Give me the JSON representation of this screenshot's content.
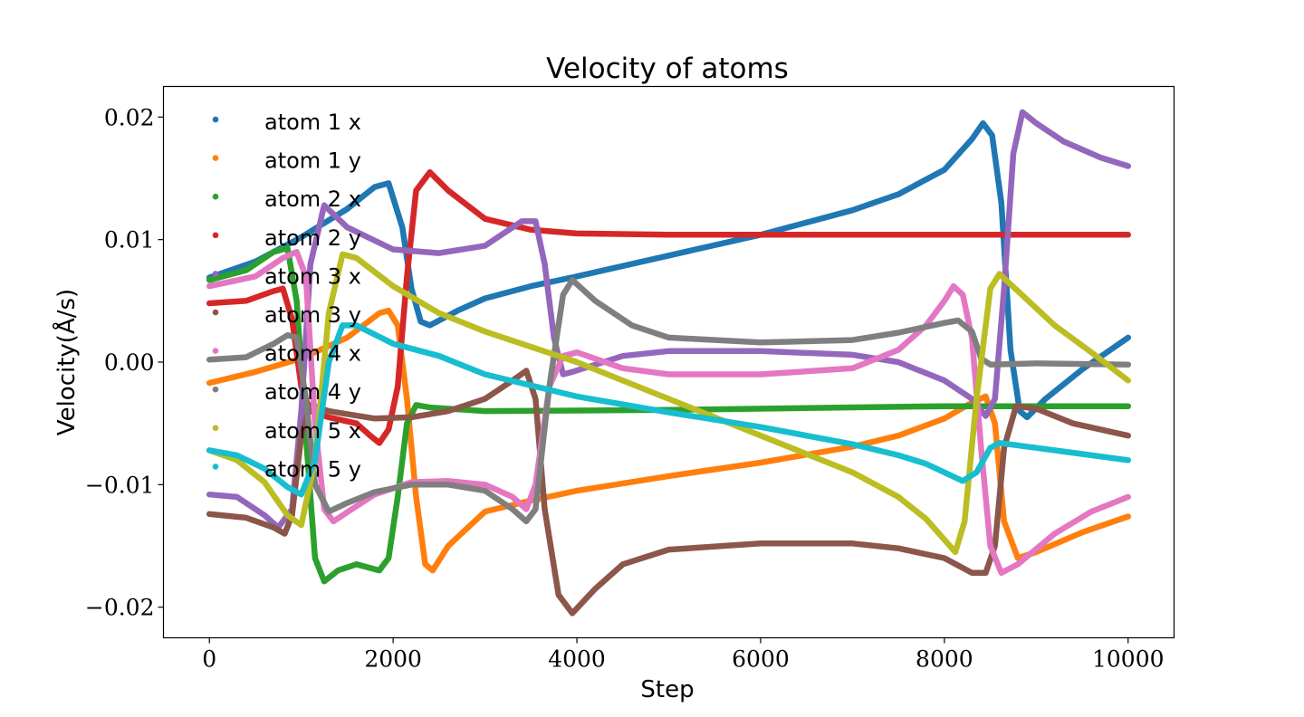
{
  "chart_data": {
    "type": "scatter",
    "title": "Velocity of atoms",
    "xlabel": "Step",
    "ylabel": "Velocity(Å/s)",
    "xlim": [
      -500,
      10500
    ],
    "ylim": [
      -0.0225,
      0.0225
    ],
    "xticks": [
      0,
      2000,
      4000,
      6000,
      8000,
      10000
    ],
    "xtick_labels": [
      "0",
      "2000",
      "4000",
      "6000",
      "8000",
      "10000"
    ],
    "yticks": [
      0.02,
      0.01,
      0.0,
      -0.01,
      -0.02
    ],
    "ytick_labels": [
      "0.02",
      "0.01",
      "0.00",
      "−0.01",
      "−0.02"
    ],
    "legend_position": "upper-left",
    "grid": false,
    "series": [
      {
        "name": "atom 1 x",
        "color": "#1f77b4",
        "points": [
          [
            0,
            0.0069
          ],
          [
            500,
            0.0082
          ],
          [
            1000,
            0.0102
          ],
          [
            1500,
            0.0125
          ],
          [
            1800,
            0.0143
          ],
          [
            1950,
            0.0146
          ],
          [
            2100,
            0.011
          ],
          [
            2200,
            0.006
          ],
          [
            2300,
            0.0033
          ],
          [
            2400,
            0.003
          ],
          [
            2700,
            0.0042
          ],
          [
            3000,
            0.0052
          ],
          [
            3500,
            0.0062
          ],
          [
            4000,
            0.007
          ],
          [
            5000,
            0.0087
          ],
          [
            6000,
            0.0104
          ],
          [
            7000,
            0.0124
          ],
          [
            7500,
            0.0137
          ],
          [
            8000,
            0.0157
          ],
          [
            8300,
            0.0182
          ],
          [
            8420,
            0.0195
          ],
          [
            8520,
            0.0185
          ],
          [
            8620,
            0.013
          ],
          [
            8720,
            0.001
          ],
          [
            8820,
            -0.004
          ],
          [
            8900,
            -0.0045
          ],
          [
            9100,
            -0.003
          ],
          [
            9500,
            -0.0006
          ],
          [
            10000,
            0.002
          ]
        ]
      },
      {
        "name": "atom 1 y",
        "color": "#ff7f0e",
        "points": [
          [
            0,
            -0.0017
          ],
          [
            500,
            -0.0008
          ],
          [
            1000,
            0.0003
          ],
          [
            1500,
            0.002
          ],
          [
            1850,
            0.004
          ],
          [
            1950,
            0.0042
          ],
          [
            2050,
            0.003
          ],
          [
            2150,
            -0.003
          ],
          [
            2250,
            -0.011
          ],
          [
            2350,
            -0.0165
          ],
          [
            2430,
            -0.017
          ],
          [
            2600,
            -0.015
          ],
          [
            3000,
            -0.0122
          ],
          [
            3500,
            -0.0113
          ],
          [
            4000,
            -0.0105
          ],
          [
            5000,
            -0.0093
          ],
          [
            6000,
            -0.0082
          ],
          [
            7000,
            -0.0069
          ],
          [
            7500,
            -0.006
          ],
          [
            8000,
            -0.0046
          ],
          [
            8300,
            -0.0033
          ],
          [
            8450,
            -0.0028
          ],
          [
            8550,
            -0.005
          ],
          [
            8650,
            -0.013
          ],
          [
            8800,
            -0.016
          ],
          [
            9000,
            -0.0155
          ],
          [
            9500,
            -0.0139
          ],
          [
            10000,
            -0.0126
          ]
        ]
      },
      {
        "name": "atom 2 x",
        "color": "#2ca02c",
        "points": [
          [
            0,
            0.0067
          ],
          [
            400,
            0.0075
          ],
          [
            700,
            0.009
          ],
          [
            850,
            0.0093
          ],
          [
            950,
            0.005
          ],
          [
            1050,
            -0.006
          ],
          [
            1150,
            -0.016
          ],
          [
            1250,
            -0.0179
          ],
          [
            1400,
            -0.017
          ],
          [
            1600,
            -0.0165
          ],
          [
            1850,
            -0.017
          ],
          [
            1950,
            -0.016
          ],
          [
            2050,
            -0.011
          ],
          [
            2150,
            -0.005
          ],
          [
            2250,
            -0.0035
          ],
          [
            2400,
            -0.0037
          ],
          [
            3000,
            -0.004
          ],
          [
            5000,
            -0.0039
          ],
          [
            8000,
            -0.0036
          ],
          [
            10000,
            -0.0036
          ]
        ]
      },
      {
        "name": "atom 2 y",
        "color": "#d62728",
        "points": [
          [
            0,
            0.0048
          ],
          [
            400,
            0.005
          ],
          [
            700,
            0.0058
          ],
          [
            800,
            0.006
          ],
          [
            900,
            0.0035
          ],
          [
            1000,
            -0.002
          ],
          [
            1100,
            -0.004
          ],
          [
            1300,
            -0.0045
          ],
          [
            1600,
            -0.005
          ],
          [
            1750,
            -0.006
          ],
          [
            1850,
            -0.0066
          ],
          [
            1950,
            -0.0055
          ],
          [
            2050,
            -0.002
          ],
          [
            2150,
            0.007
          ],
          [
            2250,
            0.014
          ],
          [
            2400,
            0.0155
          ],
          [
            2600,
            0.014
          ],
          [
            3000,
            0.0117
          ],
          [
            3500,
            0.0108
          ],
          [
            4000,
            0.0105
          ],
          [
            5000,
            0.0104
          ],
          [
            6000,
            0.0104
          ],
          [
            8000,
            0.0104
          ],
          [
            10000,
            0.0104
          ]
        ]
      },
      {
        "name": "atom 3 x",
        "color": "#9467bd",
        "points": [
          [
            0,
            -0.0108
          ],
          [
            300,
            -0.011
          ],
          [
            600,
            -0.0125
          ],
          [
            750,
            -0.0135
          ],
          [
            900,
            -0.012
          ],
          [
            1000,
            -0.004
          ],
          [
            1100,
            0.008
          ],
          [
            1250,
            0.0128
          ],
          [
            1500,
            0.011
          ],
          [
            2000,
            0.0092
          ],
          [
            2500,
            0.0089
          ],
          [
            3000,
            0.0095
          ],
          [
            3400,
            0.0115
          ],
          [
            3550,
            0.0115
          ],
          [
            3650,
            0.008
          ],
          [
            3750,
            0.002
          ],
          [
            3850,
            -0.001
          ],
          [
            3950,
            -0.0008
          ],
          [
            4500,
            0.0005
          ],
          [
            5000,
            0.0009
          ],
          [
            6000,
            0.0009
          ],
          [
            7000,
            0.0006
          ],
          [
            7500,
            0.0
          ],
          [
            8000,
            -0.0015
          ],
          [
            8300,
            -0.003
          ],
          [
            8450,
            -0.0044
          ],
          [
            8550,
            -0.003
          ],
          [
            8650,
            0.006
          ],
          [
            8750,
            0.017
          ],
          [
            8850,
            0.0204
          ],
          [
            9000,
            0.0195
          ],
          [
            9300,
            0.018
          ],
          [
            9700,
            0.0167
          ],
          [
            10000,
            0.016
          ]
        ]
      },
      {
        "name": "atom 3 y",
        "color": "#8c564b",
        "points": [
          [
            0,
            -0.0124
          ],
          [
            400,
            -0.0127
          ],
          [
            700,
            -0.0135
          ],
          [
            820,
            -0.014
          ],
          [
            900,
            -0.0125
          ],
          [
            1000,
            -0.006
          ],
          [
            1100,
            -0.0035
          ],
          [
            1300,
            -0.004
          ],
          [
            1800,
            -0.0046
          ],
          [
            2200,
            -0.0045
          ],
          [
            2600,
            -0.004
          ],
          [
            3000,
            -0.003
          ],
          [
            3300,
            -0.0015
          ],
          [
            3450,
            -0.0007
          ],
          [
            3550,
            -0.003
          ],
          [
            3650,
            -0.012
          ],
          [
            3800,
            -0.019
          ],
          [
            3950,
            -0.0205
          ],
          [
            4200,
            -0.0185
          ],
          [
            4500,
            -0.0165
          ],
          [
            5000,
            -0.0153
          ],
          [
            6000,
            -0.0148
          ],
          [
            7000,
            -0.0148
          ],
          [
            7500,
            -0.0152
          ],
          [
            8000,
            -0.016
          ],
          [
            8300,
            -0.0172
          ],
          [
            8450,
            -0.0172
          ],
          [
            8550,
            -0.015
          ],
          [
            8650,
            -0.007
          ],
          [
            8780,
            -0.0036
          ],
          [
            9000,
            -0.0038
          ],
          [
            9400,
            -0.005
          ],
          [
            10000,
            -0.006
          ]
        ]
      },
      {
        "name": "atom 4 x",
        "color": "#e377c2",
        "points": [
          [
            0,
            0.0062
          ],
          [
            500,
            0.007
          ],
          [
            800,
            0.0085
          ],
          [
            950,
            0.009
          ],
          [
            1050,
            0.007
          ],
          [
            1150,
            -0.005
          ],
          [
            1250,
            -0.012
          ],
          [
            1350,
            -0.013
          ],
          [
            1550,
            -0.012
          ],
          [
            1800,
            -0.0108
          ],
          [
            2200,
            -0.0098
          ],
          [
            2600,
            -0.0097
          ],
          [
            3000,
            -0.01
          ],
          [
            3300,
            -0.011
          ],
          [
            3450,
            -0.012
          ],
          [
            3550,
            -0.01
          ],
          [
            3700,
            -0.002
          ],
          [
            3850,
            0.0005
          ],
          [
            4000,
            0.0008
          ],
          [
            4500,
            -0.0005
          ],
          [
            5000,
            -0.001
          ],
          [
            6000,
            -0.001
          ],
          [
            7000,
            -0.0005
          ],
          [
            7500,
            0.001
          ],
          [
            7800,
            0.003
          ],
          [
            8000,
            0.005
          ],
          [
            8100,
            0.0062
          ],
          [
            8200,
            0.0055
          ],
          [
            8300,
            0.002
          ],
          [
            8400,
            -0.007
          ],
          [
            8500,
            -0.015
          ],
          [
            8620,
            -0.0172
          ],
          [
            8800,
            -0.0165
          ],
          [
            9200,
            -0.014
          ],
          [
            9600,
            -0.0122
          ],
          [
            10000,
            -0.011
          ]
        ]
      },
      {
        "name": "atom 4 y",
        "color": "#7f7f7f",
        "points": [
          [
            0,
            0.0002
          ],
          [
            400,
            0.0004
          ],
          [
            700,
            0.0015
          ],
          [
            850,
            0.0022
          ],
          [
            950,
            0.002
          ],
          [
            1050,
            -0.003
          ],
          [
            1150,
            -0.01
          ],
          [
            1300,
            -0.0122
          ],
          [
            1500,
            -0.0115
          ],
          [
            1800,
            -0.0106
          ],
          [
            2200,
            -0.01
          ],
          [
            2600,
            -0.01
          ],
          [
            3000,
            -0.0105
          ],
          [
            3300,
            -0.012
          ],
          [
            3450,
            -0.013
          ],
          [
            3550,
            -0.012
          ],
          [
            3700,
            -0.002
          ],
          [
            3850,
            0.0055
          ],
          [
            3950,
            0.0067
          ],
          [
            4200,
            0.005
          ],
          [
            4600,
            0.003
          ],
          [
            5000,
            0.002
          ],
          [
            6000,
            0.0016
          ],
          [
            7000,
            0.0018
          ],
          [
            7500,
            0.0024
          ],
          [
            8000,
            0.0032
          ],
          [
            8150,
            0.0034
          ],
          [
            8300,
            0.0025
          ],
          [
            8400,
            0.0003
          ],
          [
            8500,
            -0.0002
          ],
          [
            9000,
            -0.0001
          ],
          [
            10000,
            -0.0002
          ]
        ]
      },
      {
        "name": "atom 5 x",
        "color": "#bcbd22",
        "points": [
          [
            0,
            -0.0072
          ],
          [
            300,
            -0.008
          ],
          [
            600,
            -0.0098
          ],
          [
            850,
            -0.0125
          ],
          [
            1000,
            -0.0133
          ],
          [
            1150,
            -0.008
          ],
          [
            1300,
            0.004
          ],
          [
            1450,
            0.0088
          ],
          [
            1600,
            0.0085
          ],
          [
            2000,
            0.0062
          ],
          [
            2500,
            0.004
          ],
          [
            3000,
            0.0025
          ],
          [
            4000,
            0.0
          ],
          [
            5000,
            -0.003
          ],
          [
            6000,
            -0.006
          ],
          [
            7000,
            -0.009
          ],
          [
            7500,
            -0.011
          ],
          [
            7800,
            -0.0128
          ],
          [
            8000,
            -0.0145
          ],
          [
            8120,
            -0.0155
          ],
          [
            8220,
            -0.013
          ],
          [
            8350,
            -0.003
          ],
          [
            8500,
            0.006
          ],
          [
            8600,
            0.0072
          ],
          [
            8800,
            0.0058
          ],
          [
            9200,
            0.003
          ],
          [
            9600,
            0.0008
          ],
          [
            10000,
            -0.0015
          ]
        ]
      },
      {
        "name": "atom 5 y",
        "color": "#17becf",
        "points": [
          [
            0,
            -0.0072
          ],
          [
            300,
            -0.0076
          ],
          [
            600,
            -0.0087
          ],
          [
            850,
            -0.0102
          ],
          [
            1000,
            -0.0108
          ],
          [
            1150,
            -0.008
          ],
          [
            1300,
            0.0
          ],
          [
            1450,
            0.003
          ],
          [
            1600,
            0.003
          ],
          [
            2000,
            0.0015
          ],
          [
            2500,
            0.0005
          ],
          [
            3000,
            -0.001
          ],
          [
            4000,
            -0.0028
          ],
          [
            5000,
            -0.0041
          ],
          [
            6000,
            -0.0053
          ],
          [
            7000,
            -0.0067
          ],
          [
            7500,
            -0.0076
          ],
          [
            7800,
            -0.0083
          ],
          [
            8000,
            -0.009
          ],
          [
            8200,
            -0.0097
          ],
          [
            8350,
            -0.009
          ],
          [
            8500,
            -0.007
          ],
          [
            8600,
            -0.0066
          ],
          [
            9000,
            -0.007
          ],
          [
            9500,
            -0.0075
          ],
          [
            10000,
            -0.008
          ]
        ]
      }
    ]
  }
}
